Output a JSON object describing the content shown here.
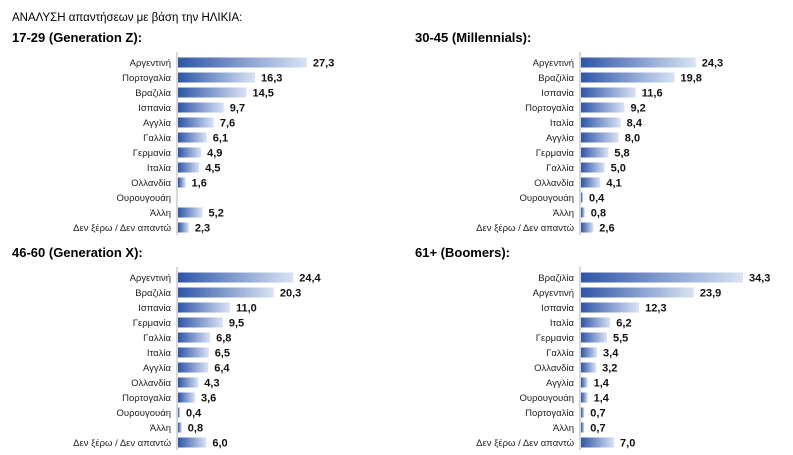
{
  "page_title": "ΑΝΑΛΥΣΗ απαντήσεων με βάση την ΗΛΙΚΙΑ:",
  "bar_gradient": {
    "start": "#2E55A8",
    "end": "#D9E3F4"
  },
  "chart_data": [
    {
      "type": "bar",
      "orientation": "horizontal",
      "title": "17-29 (Generation Z):",
      "categories": [
        "Αργεντινή",
        "Πορτογαλία",
        "Βραζιλία",
        "Ισπανία",
        "Αγγλία",
        "Γαλλία",
        "Γερμανία",
        "Ιταλία",
        "Ολλανδία",
        "Ουρουγουάη",
        "Άλλη",
        "Δεν ξέρω / Δεν απαντώ"
      ],
      "values": [
        27.3,
        16.3,
        14.5,
        9.7,
        7.6,
        6.1,
        4.9,
        4.5,
        1.6,
        null,
        5.2,
        2.3
      ],
      "labels": [
        "27,3",
        "16,3",
        "14,5",
        "9,7",
        "7,6",
        "6,1",
        "4,9",
        "4,5",
        "1,6",
        "",
        "5,2",
        "2,3"
      ],
      "xlim": [
        0,
        36
      ]
    },
    {
      "type": "bar",
      "orientation": "horizontal",
      "title": "30-45 (Millennials):",
      "categories": [
        "Αργεντινή",
        "Βραζιλία",
        "Ισπανία",
        "Πορτογαλία",
        "Ιταλία",
        "Αγγλία",
        "Γερμανία",
        "Γαλλία",
        "Ολλανδία",
        "Ουρουγουάη",
        "Άλλη",
        "Δεν ξέρω / Δεν απαντώ"
      ],
      "values": [
        24.3,
        19.8,
        11.6,
        9.2,
        8.4,
        8.0,
        5.8,
        5.0,
        4.1,
        0.4,
        0.8,
        2.6
      ],
      "labels": [
        "24,3",
        "19,8",
        "11,6",
        "9,2",
        "8,4",
        "8,0",
        "5,8",
        "5,0",
        "4,1",
        "0,4",
        "0,8",
        "2,6"
      ],
      "xlim": [
        0,
        36
      ]
    },
    {
      "type": "bar",
      "orientation": "horizontal",
      "title": "46-60 (Generation X):",
      "categories": [
        "Αργεντινή",
        "Βραζιλία",
        "Ισπανία",
        "Γερμανία",
        "Γαλλία",
        "Ιταλία",
        "Αγγλία",
        "Ολλανδία",
        "Πορτογαλία",
        "Ουρουγουάη",
        "Άλλη",
        "Δεν ξέρω / Δεν απαντώ"
      ],
      "values": [
        24.4,
        20.3,
        11.0,
        9.5,
        6.8,
        6.5,
        6.4,
        4.3,
        3.6,
        0.4,
        0.8,
        6.0
      ],
      "labels": [
        "24,4",
        "20,3",
        "11,0",
        "9,5",
        "6,8",
        "6,5",
        "6,4",
        "4,3",
        "3,6",
        "0,4",
        "0,8",
        "6,0"
      ],
      "xlim": [
        0,
        36
      ]
    },
    {
      "type": "bar",
      "orientation": "horizontal",
      "title": "61+ (Boomers):",
      "categories": [
        "Βραζιλία",
        "Αργεντινή",
        "Ισπανία",
        "Ιταλία",
        "Γερμανία",
        "Γαλλία",
        "Ολλανδία",
        "Αγγλία",
        "Ουρουγουάη",
        "Πορτογαλία",
        "Άλλη",
        "Δεν ξέρω / Δεν απαντώ"
      ],
      "values": [
        34.3,
        23.9,
        12.3,
        6.2,
        5.5,
        3.4,
        3.2,
        1.4,
        1.4,
        0.7,
        0.7,
        7.0
      ],
      "labels": [
        "34,3",
        "23,9",
        "12,3",
        "6,2",
        "5,5",
        "3,4",
        "3,2",
        "1,4",
        "1,4",
        "0,7",
        "0,7",
        "7,0"
      ],
      "xlim": [
        0,
        36
      ]
    }
  ]
}
